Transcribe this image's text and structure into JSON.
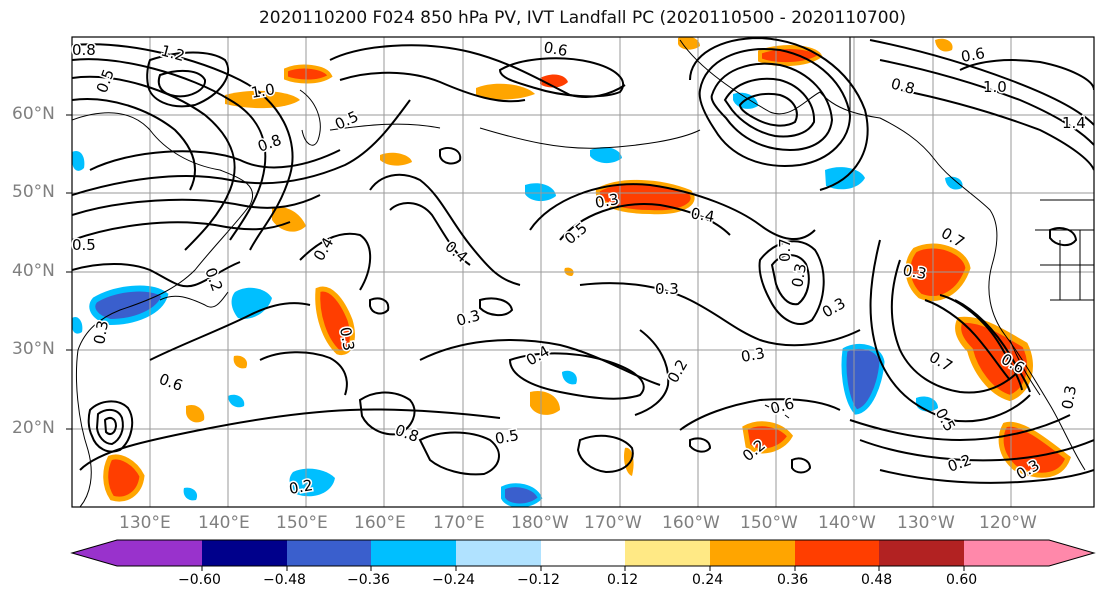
{
  "title": "2020110200 F024 850 hPa PV, IVT Landfall PC (2020110500 - 2020110700)",
  "lat_labels": [
    "60°N",
    "50°N",
    "40°N",
    "30°N",
    "20°N"
  ],
  "lon_labels": [
    "130°E",
    "140°E",
    "150°E",
    "160°E",
    "170°E",
    "180°W",
    "170°W",
    "160°W",
    "150°W",
    "140°W",
    "130°W",
    "120°W"
  ],
  "colorbar": {
    "tick_labels": [
      "−0.60",
      "−0.48",
      "−0.36",
      "−0.24",
      "−0.12",
      "0.12",
      "0.24",
      "0.36",
      "0.48",
      "0.60"
    ],
    "colors": [
      "#9932cc",
      "#00008b",
      "#3a5fcd",
      "#00bfff",
      "#b0e2ff",
      "#ffffff",
      "#ffe985",
      "#ffa500",
      "#ff3e00",
      "#b22222",
      "#ff88aa"
    ]
  },
  "contour_labels": [
    "1.2",
    "0.8",
    "0.5",
    "1.0",
    "0.6",
    "0.8",
    "0.5",
    "0.3",
    "0.4",
    "0.5",
    "0.4",
    "0.2",
    "0.5",
    "0.3",
    "0.3",
    "0.4",
    "0.3",
    "0.4",
    "0.3",
    "0.2",
    "0.3",
    "0.6",
    "0.3",
    "0.3",
    "0.7",
    "0.6",
    "0.8",
    "0.5",
    "0.2",
    "0.2",
    "0.3",
    "1.4",
    "0.8",
    "0.6",
    "1.0",
    "0.7",
    "0.7",
    "0.6",
    "0.3",
    "0.2",
    "0.3",
    "0.5"
  ]
}
